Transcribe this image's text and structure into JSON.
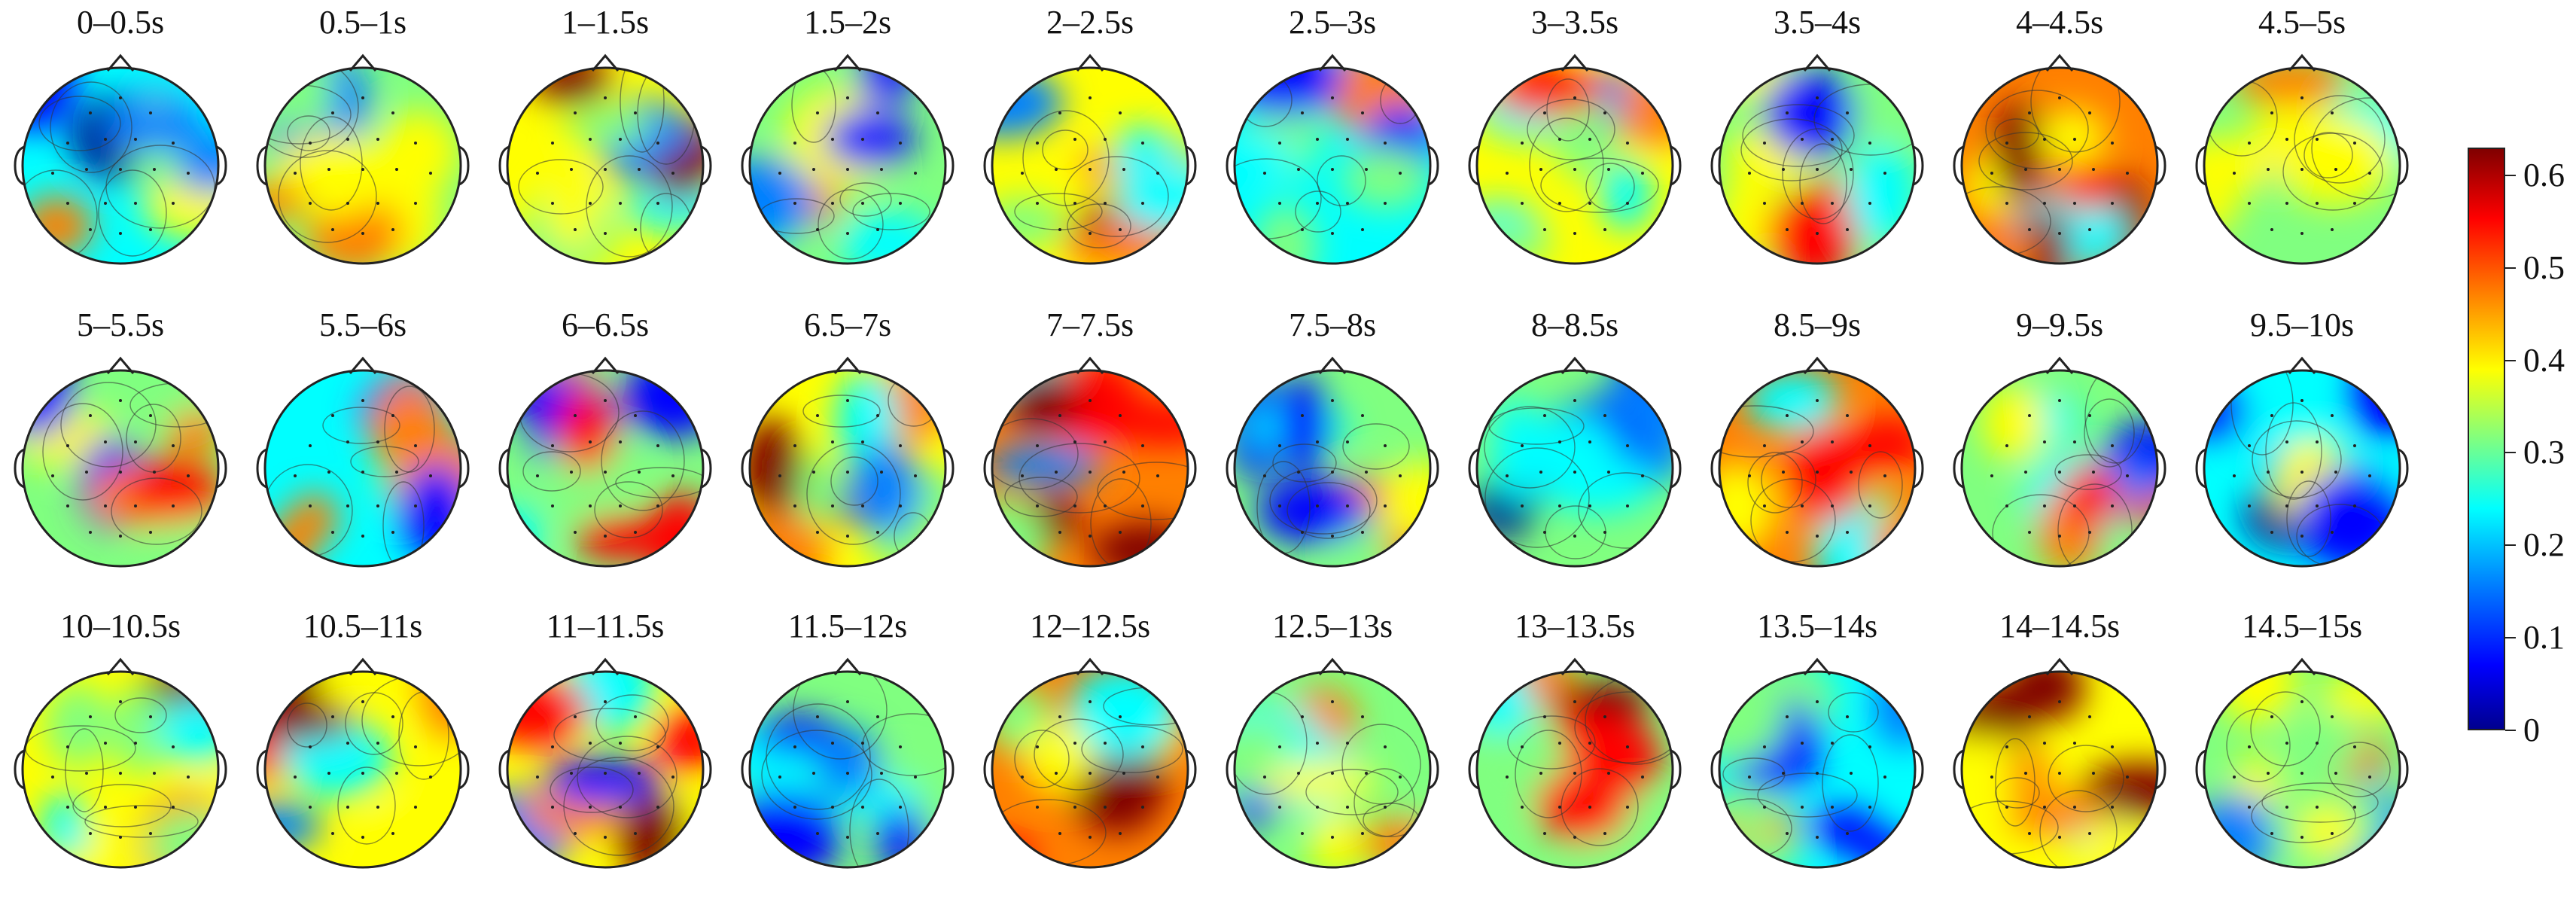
{
  "figure": {
    "panels": [
      {
        "label": "0–0.5s",
        "level": 0.22
      },
      {
        "label": "0.5–1s",
        "level": 0.3
      },
      {
        "label": "1–1.5s",
        "level": 0.42
      },
      {
        "label": "1.5–2s",
        "level": 0.33
      },
      {
        "label": "2–2.5s",
        "level": 0.4
      },
      {
        "label": "2.5–3s",
        "level": 0.24
      },
      {
        "label": "3–3.5s",
        "level": 0.36
      },
      {
        "label": "3.5–4s",
        "level": 0.28
      },
      {
        "label": "4–4.5s",
        "level": 0.45
      },
      {
        "label": "4.5–5s",
        "level": 0.28
      },
      {
        "label": "5–5.5s",
        "level": 0.32
      },
      {
        "label": "5.5–6s",
        "level": 0.27
      },
      {
        "label": "6–6.5s",
        "level": 0.3
      },
      {
        "label": "6.5–7s",
        "level": 0.42
      },
      {
        "label": "7–7.5s",
        "level": 0.46
      },
      {
        "label": "7.5–8s",
        "level": 0.32
      },
      {
        "label": "8–8.5s",
        "level": 0.3
      },
      {
        "label": "8.5–9s",
        "level": 0.45
      },
      {
        "label": "9–9.5s",
        "level": 0.33
      },
      {
        "label": "9.5–10s",
        "level": 0.26
      },
      {
        "label": "10–10.5s",
        "level": 0.4
      },
      {
        "label": "10.5–11s",
        "level": 0.38
      },
      {
        "label": "11–11.5s",
        "level": 0.36
      },
      {
        "label": "11.5–12s",
        "level": 0.28
      },
      {
        "label": "12–12.5s",
        "level": 0.45
      },
      {
        "label": "12.5–13s",
        "level": 0.34
      },
      {
        "label": "13–13.5s",
        "level": 0.34
      },
      {
        "label": "13.5–14s",
        "level": 0.26
      },
      {
        "label": "14–14.5s",
        "level": 0.42
      },
      {
        "label": "14.5–15s",
        "level": 0.28
      }
    ],
    "colorbar": {
      "min": 0,
      "max": 0.63,
      "ticks": [
        "0",
        "0.1",
        "0.2",
        "0.3",
        "0.4",
        "0.5",
        "0.6"
      ],
      "tick_values": [
        0,
        0.1,
        0.2,
        0.3,
        0.4,
        0.5,
        0.6
      ],
      "colormap": [
        "#00008f",
        "#0000ff",
        "#0080ff",
        "#00ffff",
        "#80ff80",
        "#ffff00",
        "#ff8000",
        "#ff0000",
        "#800000"
      ]
    }
  }
}
